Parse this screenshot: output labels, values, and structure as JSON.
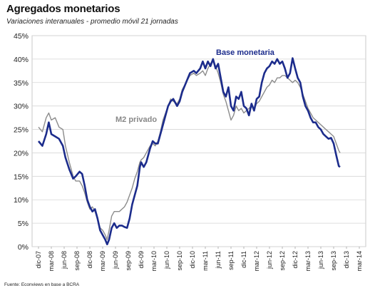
{
  "header": {
    "title": "Agregados monetarios",
    "subtitle": "Variaciones interanuales - promedio móvil 21 jornadas"
  },
  "footer": {
    "source": "Fuente: Econviews en base a BCRA"
  },
  "chart_data": {
    "type": "line",
    "title": "Agregados monetarios",
    "subtitle": "Variaciones interanuales - promedio móvil 21 jornadas",
    "xlabel": "",
    "ylabel": "",
    "ylim": [
      0,
      45
    ],
    "yticks": [
      "0%",
      "5%",
      "10%",
      "15%",
      "20%",
      "25%",
      "30%",
      "35%",
      "40%",
      "45%"
    ],
    "grid": true,
    "x_categories": [
      "dic-07",
      "mar-08",
      "jun-08",
      "sep-08",
      "dic-08",
      "mar-09",
      "jun-09",
      "sep-09",
      "dic-09",
      "mar-10",
      "jun-10",
      "sep-10",
      "dic-10",
      "mar-11",
      "jun-11",
      "sep-11",
      "dic-11",
      "mar-12",
      "jun-12",
      "sep-12",
      "dic-12",
      "mar-13",
      "jun-13",
      "sep-13",
      "dic-13",
      "mar-14"
    ],
    "series": [
      {
        "name": "Base monetaria",
        "color": "#1c2c8c",
        "points": [
          [
            0,
            22.5
          ],
          [
            0.3,
            21.5
          ],
          [
            0.6,
            24
          ],
          [
            0.8,
            26.5
          ],
          [
            1.0,
            24
          ],
          [
            1.3,
            23.5
          ],
          [
            1.6,
            23
          ],
          [
            1.9,
            21.5
          ],
          [
            2.1,
            19
          ],
          [
            2.4,
            16.5
          ],
          [
            2.7,
            14.5
          ],
          [
            2.9,
            15
          ],
          [
            3.2,
            16
          ],
          [
            3.4,
            15.5
          ],
          [
            3.6,
            13
          ],
          [
            3.8,
            10
          ],
          [
            4.0,
            8.5
          ],
          [
            4.2,
            7.5
          ],
          [
            4.4,
            8
          ],
          [
            4.6,
            6
          ],
          [
            4.8,
            3.5
          ],
          [
            5.0,
            2.5
          ],
          [
            5.2,
            1.5
          ],
          [
            5.35,
            0.5
          ],
          [
            5.5,
            1.5
          ],
          [
            5.7,
            4
          ],
          [
            5.9,
            5
          ],
          [
            6.1,
            4
          ],
          [
            6.3,
            4.5
          ],
          [
            6.5,
            4.5
          ],
          [
            6.7,
            4.2
          ],
          [
            6.9,
            4
          ],
          [
            7.1,
            6
          ],
          [
            7.3,
            9
          ],
          [
            7.5,
            11
          ],
          [
            7.7,
            13
          ],
          [
            7.9,
            17
          ],
          [
            8.0,
            18
          ],
          [
            8.2,
            17
          ],
          [
            8.4,
            18
          ],
          [
            8.7,
            21
          ],
          [
            8.9,
            22.5
          ],
          [
            9.1,
            22
          ],
          [
            9.3,
            22
          ],
          [
            9.5,
            24
          ],
          [
            9.7,
            26
          ],
          [
            9.9,
            28
          ],
          [
            10.1,
            30
          ],
          [
            10.3,
            31
          ],
          [
            10.5,
            31.5
          ],
          [
            10.8,
            30
          ],
          [
            11.0,
            31
          ],
          [
            11.2,
            33
          ],
          [
            11.5,
            35
          ],
          [
            11.8,
            37
          ],
          [
            12.1,
            37.5
          ],
          [
            12.3,
            37
          ],
          [
            12.6,
            38
          ],
          [
            12.8,
            39.5
          ],
          [
            13.0,
            38
          ],
          [
            13.2,
            39.5
          ],
          [
            13.4,
            38.5
          ],
          [
            13.6,
            40
          ],
          [
            13.8,
            38
          ],
          [
            14.0,
            39
          ],
          [
            14.2,
            36
          ],
          [
            14.4,
            33
          ],
          [
            14.6,
            32
          ],
          [
            14.8,
            34
          ],
          [
            15.0,
            30
          ],
          [
            15.2,
            29
          ],
          [
            15.4,
            32
          ],
          [
            15.6,
            31.5
          ],
          [
            15.8,
            33
          ],
          [
            16.0,
            30
          ],
          [
            16.2,
            29.5
          ],
          [
            16.4,
            28
          ],
          [
            16.6,
            30.5
          ],
          [
            16.8,
            29
          ],
          [
            17.0,
            31.5
          ],
          [
            17.2,
            32
          ],
          [
            17.4,
            35
          ],
          [
            17.6,
            37
          ],
          [
            17.8,
            38
          ],
          [
            18.0,
            38.5
          ],
          [
            18.2,
            39.5
          ],
          [
            18.4,
            39
          ],
          [
            18.6,
            40
          ],
          [
            18.8,
            39
          ],
          [
            19.0,
            39.5
          ],
          [
            19.2,
            38
          ],
          [
            19.4,
            36
          ],
          [
            19.6,
            37
          ],
          [
            19.8,
            40.2
          ],
          [
            20.0,
            38
          ],
          [
            20.2,
            36
          ],
          [
            20.4,
            35
          ],
          [
            20.6,
            32
          ],
          [
            20.8,
            30
          ],
          [
            21.0,
            29
          ],
          [
            21.2,
            27.5
          ],
          [
            21.4,
            26.5
          ],
          [
            21.6,
            26.5
          ],
          [
            21.8,
            25.5
          ],
          [
            22.0,
            25
          ],
          [
            22.2,
            24
          ],
          [
            22.4,
            23.5
          ],
          [
            22.6,
            23
          ],
          [
            22.8,
            23.2
          ],
          [
            23.0,
            22
          ],
          [
            23.2,
            19.5
          ],
          [
            23.4,
            17.2
          ],
          [
            23.5,
            17
          ]
        ]
      },
      {
        "name": "M2 privado",
        "color": "#8c8c8c",
        "points": [
          [
            0,
            25.5
          ],
          [
            0.3,
            24.5
          ],
          [
            0.6,
            27.5
          ],
          [
            0.8,
            28.5
          ],
          [
            1.0,
            27
          ],
          [
            1.3,
            27.5
          ],
          [
            1.6,
            25.5
          ],
          [
            1.9,
            25
          ],
          [
            2.1,
            21.5
          ],
          [
            2.4,
            18
          ],
          [
            2.7,
            15
          ],
          [
            2.9,
            14
          ],
          [
            3.2,
            14
          ],
          [
            3.4,
            13
          ],
          [
            3.6,
            11.5
          ],
          [
            3.8,
            9.5
          ],
          [
            4.0,
            8
          ],
          [
            4.2,
            8.5
          ],
          [
            4.4,
            7.5
          ],
          [
            4.6,
            6
          ],
          [
            4.8,
            4
          ],
          [
            5.0,
            3.5
          ],
          [
            5.2,
            2.5
          ],
          [
            5.35,
            1.5
          ],
          [
            5.5,
            3.5
          ],
          [
            5.7,
            6.5
          ],
          [
            5.9,
            7.5
          ],
          [
            6.1,
            7.5
          ],
          [
            6.3,
            7.5
          ],
          [
            6.5,
            8
          ],
          [
            6.7,
            8.5
          ],
          [
            6.9,
            9.5
          ],
          [
            7.1,
            11
          ],
          [
            7.3,
            12.5
          ],
          [
            7.5,
            14.5
          ],
          [
            7.7,
            16
          ],
          [
            7.9,
            18
          ],
          [
            8.0,
            18.5
          ],
          [
            8.2,
            19
          ],
          [
            8.4,
            20
          ],
          [
            8.7,
            21.5
          ],
          [
            8.9,
            22
          ],
          [
            9.1,
            21.5
          ],
          [
            9.3,
            22.5
          ],
          [
            9.5,
            24.5
          ],
          [
            9.7,
            27
          ],
          [
            9.9,
            28.5
          ],
          [
            10.1,
            30
          ],
          [
            10.3,
            31.5
          ],
          [
            10.5,
            31
          ],
          [
            10.8,
            30.5
          ],
          [
            11.0,
            31.5
          ],
          [
            11.2,
            33.5
          ],
          [
            11.5,
            35
          ],
          [
            11.8,
            36.5
          ],
          [
            12.1,
            37
          ],
          [
            12.3,
            36.5
          ],
          [
            12.6,
            37
          ],
          [
            12.8,
            37.5
          ],
          [
            13.0,
            36.5
          ],
          [
            13.2,
            38
          ],
          [
            13.4,
            39
          ],
          [
            13.6,
            40
          ],
          [
            13.8,
            38.5
          ],
          [
            14.0,
            37
          ],
          [
            14.2,
            35
          ],
          [
            14.4,
            32.5
          ],
          [
            14.6,
            31
          ],
          [
            14.8,
            29
          ],
          [
            15.0,
            27
          ],
          [
            15.2,
            28
          ],
          [
            15.4,
            30
          ],
          [
            15.6,
            29
          ],
          [
            15.8,
            29.5
          ],
          [
            16.0,
            28.5
          ],
          [
            16.2,
            29
          ],
          [
            16.4,
            29.5
          ],
          [
            16.6,
            30
          ],
          [
            16.8,
            29.5
          ],
          [
            17.0,
            30.5
          ],
          [
            17.2,
            31
          ],
          [
            17.4,
            32
          ],
          [
            17.6,
            33
          ],
          [
            17.8,
            34
          ],
          [
            18.0,
            34.5
          ],
          [
            18.2,
            35.5
          ],
          [
            18.4,
            35
          ],
          [
            18.6,
            36
          ],
          [
            18.8,
            36
          ],
          [
            19.0,
            36.5
          ],
          [
            19.2,
            36.5
          ],
          [
            19.4,
            36
          ],
          [
            19.6,
            35.5
          ],
          [
            19.8,
            35
          ],
          [
            20.0,
            35.5
          ],
          [
            20.2,
            35
          ],
          [
            20.4,
            34
          ],
          [
            20.6,
            32.5
          ],
          [
            20.8,
            31
          ],
          [
            21.0,
            29.5
          ],
          [
            21.2,
            28.5
          ],
          [
            21.4,
            27.5
          ],
          [
            21.6,
            27
          ],
          [
            21.8,
            26.5
          ],
          [
            22.0,
            26
          ],
          [
            22.2,
            25.5
          ],
          [
            22.4,
            25
          ],
          [
            22.6,
            24.5
          ],
          [
            22.8,
            24
          ],
          [
            23.0,
            23.5
          ],
          [
            23.2,
            22
          ],
          [
            23.4,
            20.5
          ],
          [
            23.5,
            20
          ]
        ]
      }
    ],
    "annotations": [
      {
        "text": "Base monetaria",
        "series": "Base monetaria"
      },
      {
        "text": "M2 privado",
        "series": "M2 privado"
      }
    ]
  }
}
